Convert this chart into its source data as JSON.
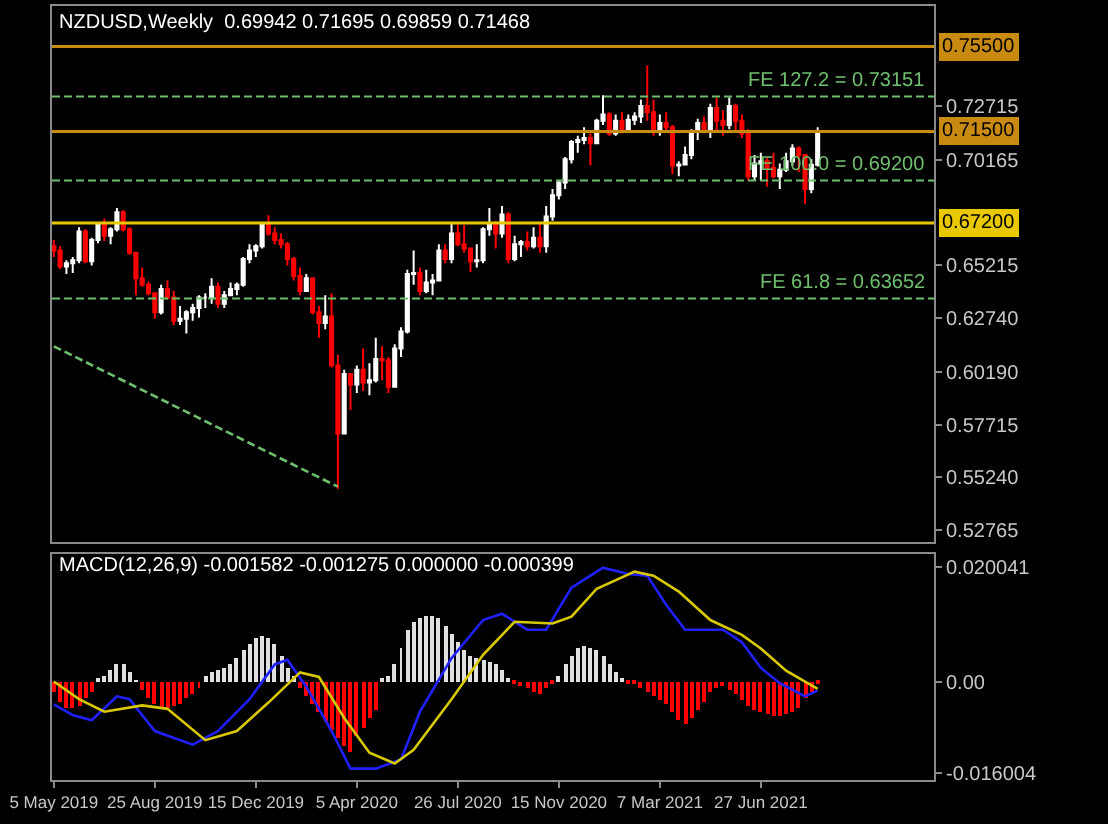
{
  "chart_data": [
    {
      "type": "candlestick",
      "title": "NZDUSD,Weekly  0.69942 0.71695 0.69859 0.71468",
      "tick_labels": "y",
      "xlim": [
        "2019-05-03",
        "2022-01-05"
      ],
      "ylim": [
        0.522,
        0.774
      ],
      "yticks": [
        {
          "value": 0.72715,
          "label": "0.72715"
        },
        {
          "value": 0.70165,
          "label": "0.70165"
        },
        {
          "value": 0.65215,
          "label": "0.65215"
        },
        {
          "value": 0.6274,
          "label": "0.62740"
        },
        {
          "value": 0.6019,
          "label": "0.60190"
        },
        {
          "value": 0.57715,
          "label": "0.57715"
        },
        {
          "value": 0.5524,
          "label": "0.55240"
        },
        {
          "value": 0.52765,
          "label": "0.52765"
        }
      ],
      "x": [
        "2019-05-05",
        "2019-05-12",
        "2019-05-19",
        "2019-05-26",
        "2019-06-02",
        "2019-06-09",
        "2019-06-16",
        "2019-06-23",
        "2019-06-30",
        "2019-07-07",
        "2019-07-14",
        "2019-07-21",
        "2019-07-28",
        "2019-08-04",
        "2019-08-11",
        "2019-08-18",
        "2019-08-25",
        "2019-09-01",
        "2019-09-08",
        "2019-09-15",
        "2019-09-22",
        "2019-09-29",
        "2019-10-06",
        "2019-10-13",
        "2019-10-20",
        "2019-10-27",
        "2019-11-03",
        "2019-11-10",
        "2019-11-17",
        "2019-11-24",
        "2019-12-01",
        "2019-12-08",
        "2019-12-15",
        "2019-12-22",
        "2019-12-29",
        "2020-01-05",
        "2020-01-12",
        "2020-01-19",
        "2020-01-26",
        "2020-02-02",
        "2020-02-09",
        "2020-02-16",
        "2020-02-23",
        "2020-03-01",
        "2020-03-08",
        "2020-03-15",
        "2020-03-22",
        "2020-03-29",
        "2020-04-05",
        "2020-04-12",
        "2020-04-19",
        "2020-04-26",
        "2020-05-03",
        "2020-05-10",
        "2020-05-17",
        "2020-05-24",
        "2020-05-31",
        "2020-06-07",
        "2020-06-14",
        "2020-06-21",
        "2020-06-28",
        "2020-07-05",
        "2020-07-12",
        "2020-07-19",
        "2020-07-26",
        "2020-08-02",
        "2020-08-09",
        "2020-08-16",
        "2020-08-23",
        "2020-08-30",
        "2020-09-06",
        "2020-09-13",
        "2020-09-20",
        "2020-09-27",
        "2020-10-04",
        "2020-10-11",
        "2020-10-18",
        "2020-10-25",
        "2020-11-01",
        "2020-11-08",
        "2020-11-15",
        "2020-11-22",
        "2020-11-29",
        "2020-12-06",
        "2020-12-13",
        "2020-12-20",
        "2020-12-27",
        "2021-01-03",
        "2021-01-10",
        "2021-01-17",
        "2021-01-24",
        "2021-01-31",
        "2021-02-07",
        "2021-02-14",
        "2021-02-21",
        "2021-02-28",
        "2021-03-07",
        "2021-03-14",
        "2021-03-21",
        "2021-03-28",
        "2021-04-04",
        "2021-04-11",
        "2021-04-18",
        "2021-04-25",
        "2021-05-02",
        "2021-05-09",
        "2021-05-16",
        "2021-05-23",
        "2021-05-30",
        "2021-06-06",
        "2021-06-13",
        "2021-06-20",
        "2021-06-27",
        "2021-07-04",
        "2021-07-11",
        "2021-07-18",
        "2021-07-25",
        "2021-08-01",
        "2021-08-08",
        "2021-08-15",
        "2021-08-22",
        "2021-08-29"
      ],
      "ohlc": [
        [
          0.661,
          0.664,
          0.656,
          0.659
        ],
        [
          0.659,
          0.661,
          0.6505,
          0.6515
        ],
        [
          0.6515,
          0.6545,
          0.648,
          0.653
        ],
        [
          0.653,
          0.656,
          0.6485,
          0.6545
        ],
        [
          0.6545,
          0.67,
          0.653,
          0.668
        ],
        [
          0.668,
          0.669,
          0.653,
          0.654
        ],
        [
          0.654,
          0.665,
          0.652,
          0.664
        ],
        [
          0.664,
          0.6725,
          0.6625,
          0.6715
        ],
        [
          0.6715,
          0.674,
          0.6635,
          0.666
        ],
        [
          0.666,
          0.67,
          0.662,
          0.669
        ],
        [
          0.669,
          0.679,
          0.668,
          0.677
        ],
        [
          0.677,
          0.678,
          0.668,
          0.669
        ],
        [
          0.669,
          0.67,
          0.657,
          0.658
        ],
        [
          0.658,
          0.6585,
          0.638,
          0.646
        ],
        [
          0.646,
          0.651,
          0.642,
          0.643
        ],
        [
          0.643,
          0.6445,
          0.638,
          0.639
        ],
        [
          0.639,
          0.639,
          0.627,
          0.63
        ],
        [
          0.63,
          0.643,
          0.629,
          0.641
        ],
        [
          0.641,
          0.645,
          0.636,
          0.637
        ],
        [
          0.637,
          0.64,
          0.624,
          0.626
        ],
        [
          0.626,
          0.633,
          0.624,
          0.627
        ],
        [
          0.627,
          0.631,
          0.62,
          0.63
        ],
        [
          0.63,
          0.634,
          0.626,
          0.632
        ],
        [
          0.632,
          0.638,
          0.6275,
          0.637
        ],
        [
          0.637,
          0.639,
          0.632,
          0.637
        ],
        [
          0.637,
          0.646,
          0.634,
          0.642
        ],
        [
          0.642,
          0.644,
          0.632,
          0.634
        ],
        [
          0.634,
          0.64,
          0.632,
          0.638
        ],
        [
          0.638,
          0.644,
          0.638,
          0.641
        ],
        [
          0.641,
          0.644,
          0.638,
          0.643
        ],
        [
          0.643,
          0.656,
          0.642,
          0.655
        ],
        [
          0.655,
          0.662,
          0.653,
          0.659
        ],
        [
          0.659,
          0.662,
          0.656,
          0.661
        ],
        [
          0.661,
          0.672,
          0.66,
          0.671
        ],
        [
          0.671,
          0.6756,
          0.666,
          0.667
        ],
        [
          0.667,
          0.67,
          0.662,
          0.664
        ],
        [
          0.664,
          0.667,
          0.66,
          0.662
        ],
        [
          0.662,
          0.663,
          0.652,
          0.655
        ],
        [
          0.655,
          0.656,
          0.645,
          0.647
        ],
        [
          0.647,
          0.651,
          0.638,
          0.64
        ],
        [
          0.64,
          0.648,
          0.64,
          0.646
        ],
        [
          0.646,
          0.646,
          0.629,
          0.63
        ],
        [
          0.63,
          0.633,
          0.618,
          0.625
        ],
        [
          0.625,
          0.638,
          0.622,
          0.628
        ],
        [
          0.628,
          0.639,
          0.604,
          0.605
        ],
        [
          0.605,
          0.61,
          0.547,
          0.573
        ],
        [
          0.573,
          0.603,
          0.573,
          0.601
        ],
        [
          0.601,
          0.601,
          0.584,
          0.596
        ],
        [
          0.596,
          0.605,
          0.592,
          0.603
        ],
        [
          0.603,
          0.613,
          0.593,
          0.597
        ],
        [
          0.597,
          0.606,
          0.591,
          0.598
        ],
        [
          0.598,
          0.618,
          0.597,
          0.608
        ],
        [
          0.608,
          0.614,
          0.598,
          0.6075
        ],
        [
          0.6075,
          0.609,
          0.592,
          0.595
        ],
        [
          0.595,
          0.615,
          0.595,
          0.613
        ],
        [
          0.613,
          0.623,
          0.609,
          0.621
        ],
        [
          0.621,
          0.65,
          0.62,
          0.648
        ],
        [
          0.648,
          0.659,
          0.643,
          0.6485
        ],
        [
          0.6485,
          0.651,
          0.638,
          0.64
        ],
        [
          0.64,
          0.65,
          0.639,
          0.644
        ],
        [
          0.644,
          0.648,
          0.638,
          0.645
        ],
        [
          0.645,
          0.662,
          0.645,
          0.659
        ],
        [
          0.659,
          0.662,
          0.653,
          0.655
        ],
        [
          0.655,
          0.672,
          0.653,
          0.667
        ],
        [
          0.667,
          0.672,
          0.661,
          0.662
        ],
        [
          0.662,
          0.671,
          0.658,
          0.66
        ],
        [
          0.66,
          0.66,
          0.649,
          0.654
        ],
        [
          0.654,
          0.662,
          0.651,
          0.6545
        ],
        [
          0.6545,
          0.67,
          0.653,
          0.669
        ],
        [
          0.669,
          0.679,
          0.666,
          0.671
        ],
        [
          0.671,
          0.673,
          0.66,
          0.667
        ],
        [
          0.667,
          0.68,
          0.665,
          0.676
        ],
        [
          0.676,
          0.677,
          0.653,
          0.655
        ],
        [
          0.655,
          0.666,
          0.654,
          0.662
        ],
        [
          0.662,
          0.664,
          0.656,
          0.663
        ],
        [
          0.663,
          0.668,
          0.659,
          0.661
        ],
        [
          0.661,
          0.67,
          0.66,
          0.665
        ],
        [
          0.665,
          0.672,
          0.658,
          0.661
        ],
        [
          0.661,
          0.68,
          0.658,
          0.675
        ],
        [
          0.675,
          0.688,
          0.673,
          0.685
        ],
        [
          0.685,
          0.692,
          0.683,
          0.691
        ],
        [
          0.691,
          0.703,
          0.688,
          0.702
        ],
        [
          0.702,
          0.711,
          0.7,
          0.71
        ],
        [
          0.71,
          0.713,
          0.705,
          0.711
        ],
        [
          0.711,
          0.717,
          0.709,
          0.712
        ],
        [
          0.712,
          0.714,
          0.699,
          0.7095
        ],
        [
          0.7095,
          0.721,
          0.709,
          0.72
        ],
        [
          0.72,
          0.732,
          0.718,
          0.723
        ],
        [
          0.723,
          0.724,
          0.713,
          0.714
        ],
        [
          0.714,
          0.723,
          0.713,
          0.72
        ],
        [
          0.72,
          0.724,
          0.714,
          0.715
        ],
        [
          0.715,
          0.723,
          0.715,
          0.7205
        ],
        [
          0.7205,
          0.724,
          0.718,
          0.722
        ],
        [
          0.722,
          0.73,
          0.719,
          0.727
        ],
        [
          0.727,
          0.746,
          0.72,
          0.724
        ],
        [
          0.724,
          0.73,
          0.713,
          0.715
        ],
        [
          0.715,
          0.723,
          0.713,
          0.719
        ],
        [
          0.719,
          0.724,
          0.715,
          0.717
        ],
        [
          0.717,
          0.718,
          0.695,
          0.699
        ],
        [
          0.699,
          0.701,
          0.694,
          0.6995
        ],
        [
          0.6995,
          0.708,
          0.699,
          0.704
        ],
        [
          0.704,
          0.716,
          0.702,
          0.715
        ],
        [
          0.715,
          0.721,
          0.711,
          0.719
        ],
        [
          0.719,
          0.722,
          0.715,
          0.716
        ],
        [
          0.716,
          0.728,
          0.712,
          0.726
        ],
        [
          0.726,
          0.731,
          0.715,
          0.72
        ],
        [
          0.72,
          0.725,
          0.713,
          0.718
        ],
        [
          0.718,
          0.731,
          0.716,
          0.727
        ],
        [
          0.727,
          0.728,
          0.715,
          0.72
        ],
        [
          0.72,
          0.723,
          0.712,
          0.714
        ],
        [
          0.714,
          0.716,
          0.692,
          0.694
        ],
        [
          0.694,
          0.704,
          0.692,
          0.7
        ],
        [
          0.7,
          0.705,
          0.692,
          0.701
        ],
        [
          0.701,
          0.703,
          0.689,
          0.698
        ],
        [
          0.698,
          0.705,
          0.693,
          0.694
        ],
        [
          0.694,
          0.7,
          0.688,
          0.697
        ],
        [
          0.697,
          0.705,
          0.696,
          0.701
        ],
        [
          0.701,
          0.709,
          0.699,
          0.707
        ],
        [
          0.707,
          0.708,
          0.696,
          0.704
        ],
        [
          0.704,
          0.704,
          0.681,
          0.688
        ],
        [
          0.688,
          0.702,
          0.686,
          0.6994
        ],
        [
          0.69942,
          0.71695,
          0.69859,
          0.71468
        ]
      ],
      "series": [
        {
          "type": "line",
          "x": [
            "2019-05-05",
            "2020-03-15"
          ],
          "values": [
            0.614,
            0.548
          ],
          "color": "#6fbf6f",
          "line_style": "dashed"
        }
      ],
      "ref_lines": [
        {
          "axis": "y",
          "value": 0.755,
          "label": "0.75500",
          "color": "#c88a10",
          "line_style": "solid"
        },
        {
          "axis": "y",
          "value": 0.715,
          "label": "0.71500",
          "color": "#c88a10",
          "line_style": "solid"
        },
        {
          "axis": "y",
          "value": 0.672,
          "label": "0.67200",
          "color": "#e8c800",
          "line_style": "solid"
        },
        {
          "axis": "y",
          "value": 0.73151,
          "label": "FE 127.2 = 0.73151",
          "color": "#6fbf6f",
          "line_style": "dashed"
        },
        {
          "axis": "y",
          "value": 0.692,
          "label": "FE 100.0 = 0.69200",
          "color": "#6fbf6f",
          "line_style": "dashed"
        },
        {
          "axis": "y",
          "value": 0.63652,
          "label": "FE 61.8 = 0.63652",
          "color": "#6fbf6f",
          "line_style": "dashed"
        }
      ]
    },
    {
      "type": "bar",
      "title": "MACD(12,26,9) -0.001582 -0.001275 0.000000 -0.000399",
      "xlim": [
        "2019-05-03",
        "2022-01-05"
      ],
      "ylim": [
        -0.0173,
        0.0224
      ],
      "yticks": [
        0.020041,
        {
          "value": 0,
          "label": "0.00"
        },
        -0.016004
      ],
      "xticks": [
        {
          "value": "2019-05-05",
          "label": "5 May 2019"
        },
        {
          "value": "2019-08-25",
          "label": "25 Aug 2019"
        },
        {
          "value": "2019-12-15",
          "label": "15 Dec 2019"
        },
        {
          "value": "2020-04-05",
          "label": "5 Apr 2020"
        },
        {
          "value": "2020-07-26",
          "label": "26 Jul 2020"
        },
        {
          "value": "2020-11-15",
          "label": "15 Nov 2020"
        },
        {
          "value": "2021-03-07",
          "label": "7 Mar 2021"
        },
        {
          "value": "2021-06-27",
          "label": "27 Jun 2021"
        }
      ],
      "x": [
        "2019-05-05",
        "2019-05-12",
        "2019-05-19",
        "2019-05-26",
        "2019-06-02",
        "2019-06-09",
        "2019-06-16",
        "2019-06-23",
        "2019-06-30",
        "2019-07-07",
        "2019-07-14",
        "2019-07-21",
        "2019-07-28",
        "2019-08-04",
        "2019-08-11",
        "2019-08-18",
        "2019-08-25",
        "2019-09-01",
        "2019-09-08",
        "2019-09-15",
        "2019-09-22",
        "2019-09-29",
        "2019-10-06",
        "2019-10-13",
        "2019-10-20",
        "2019-10-27",
        "2019-11-03",
        "2019-11-10",
        "2019-11-17",
        "2019-11-24",
        "2019-12-01",
        "2019-12-08",
        "2019-12-15",
        "2019-12-22",
        "2019-12-29",
        "2020-01-05",
        "2020-01-12",
        "2020-01-19",
        "2020-01-26",
        "2020-02-02",
        "2020-02-09",
        "2020-02-16",
        "2020-02-23",
        "2020-03-01",
        "2020-03-08",
        "2020-03-15",
        "2020-03-22",
        "2020-03-29",
        "2020-04-05",
        "2020-04-12",
        "2020-04-19",
        "2020-04-26",
        "2020-05-03",
        "2020-05-10",
        "2020-05-17",
        "2020-05-24",
        "2020-05-31",
        "2020-06-07",
        "2020-06-14",
        "2020-06-21",
        "2020-06-28",
        "2020-07-05",
        "2020-07-12",
        "2020-07-19",
        "2020-07-26",
        "2020-08-02",
        "2020-08-09",
        "2020-08-16",
        "2020-08-23",
        "2020-08-30",
        "2020-09-06",
        "2020-09-13",
        "2020-09-20",
        "2020-09-27",
        "2020-10-04",
        "2020-10-11",
        "2020-10-18",
        "2020-10-25",
        "2020-11-01",
        "2020-11-08",
        "2020-11-15",
        "2020-11-22",
        "2020-11-29",
        "2020-12-06",
        "2020-12-13",
        "2020-12-20",
        "2020-12-27",
        "2021-01-03",
        "2021-01-10",
        "2021-01-17",
        "2021-01-24",
        "2021-01-31",
        "2021-02-07",
        "2021-02-14",
        "2021-02-21",
        "2021-02-28",
        "2021-03-07",
        "2021-03-14",
        "2021-03-21",
        "2021-03-28",
        "2021-04-04",
        "2021-04-11",
        "2021-04-18",
        "2021-04-25",
        "2021-05-02",
        "2021-05-09",
        "2021-05-16",
        "2021-05-23",
        "2021-05-30",
        "2021-06-06",
        "2021-06-13",
        "2021-06-20",
        "2021-06-27",
        "2021-07-04",
        "2021-07-11",
        "2021-07-18",
        "2021-07-25",
        "2021-08-01",
        "2021-08-08",
        "2021-08-15",
        "2021-08-22",
        "2021-08-29"
      ],
      "series": [
        {
          "values": [
            -0.002,
            -0.0035,
            -0.0045,
            -0.0048,
            -0.0042,
            -0.003,
            -0.0018,
            0.0003,
            0.001,
            0.0022,
            0.0032,
            0.003,
            0.0015,
            0.0002,
            -0.0015,
            -0.003,
            -0.004,
            -0.0045,
            -0.0045,
            -0.0042,
            -0.0038,
            -0.003,
            -0.0022,
            -0.001,
            0.0008,
            0.0015,
            0.002,
            0.0025,
            0.003,
            0.004,
            0.0055,
            0.0065,
            0.0075,
            0.008,
            0.0078,
            0.0065,
            0.0045,
            0.0025,
            0.0008,
            -0.001,
            -0.0025,
            -0.004,
            -0.0055,
            -0.007,
            -0.0085,
            -0.01,
            -0.0115,
            -0.0123,
            -0.0095,
            -0.008,
            -0.0065,
            -0.005,
            0.0003,
            0.001,
            0.003,
            0.006,
            0.009,
            0.0105,
            0.0112,
            0.0115,
            0.0115,
            0.011,
            0.0098,
            0.0085,
            0.007,
            0.0055,
            0.0045,
            0.004,
            0.0038,
            0.0035,
            0.003,
            0.002,
            0.0005,
            -0.0005,
            -0.0008,
            -0.0012,
            -0.0018,
            -0.0022,
            -0.0012,
            -0.0004,
            0.001,
            0.003,
            0.0045,
            0.006,
            0.0063,
            0.006,
            0.0055,
            0.0045,
            0.0032,
            0.0018,
            0.0006,
            -0.0003,
            -0.0005,
            -0.001,
            -0.0018,
            -0.0025,
            -0.0032,
            -0.004,
            -0.0055,
            -0.0068,
            -0.0075,
            -0.0065,
            -0.005,
            -0.0035,
            -0.002,
            -0.001,
            -0.0008,
            -0.0015,
            -0.0022,
            -0.0032,
            -0.0042,
            -0.005,
            -0.0055,
            -0.0058,
            -0.006,
            -0.006,
            -0.0058,
            -0.0052,
            -0.0045,
            -0.003,
            -0.0018,
            -0.0004
          ],
          "colors": [
            "#ff0000",
            "#ff0000",
            "#ff0000",
            "#ff0000",
            "#ff0000",
            "#ff0000",
            "#ff0000",
            "#e0e0e0",
            "#e0e0e0",
            "#e0e0e0",
            "#e0e0e0",
            "#e0e0e0",
            "#e0e0e0",
            "#e0e0e0",
            "#ff0000",
            "#ff0000",
            "#ff0000",
            "#ff0000",
            "#ff0000",
            "#ff0000",
            "#ff0000",
            "#ff0000",
            "#ff0000",
            "#ff0000",
            "#e0e0e0",
            "#e0e0e0",
            "#e0e0e0",
            "#e0e0e0",
            "#e0e0e0",
            "#e0e0e0",
            "#e0e0e0",
            "#e0e0e0",
            "#e0e0e0",
            "#e0e0e0",
            "#e0e0e0",
            "#e0e0e0",
            "#e0e0e0",
            "#e0e0e0",
            "#e0e0e0",
            "#ff0000",
            "#ff0000",
            "#ff0000",
            "#ff0000",
            "#ff0000",
            "#ff0000",
            "#ff0000",
            "#ff0000",
            "#ff0000",
            "#ff0000",
            "#ff0000",
            "#ff0000",
            "#ff0000",
            "#e0e0e0",
            "#e0e0e0",
            "#e0e0e0",
            "#e0e0e0",
            "#e0e0e0",
            "#e0e0e0",
            "#e0e0e0",
            "#e0e0e0",
            "#e0e0e0",
            "#e0e0e0",
            "#e0e0e0",
            "#e0e0e0",
            "#e0e0e0",
            "#e0e0e0",
            "#e0e0e0",
            "#e0e0e0",
            "#e0e0e0",
            "#e0e0e0",
            "#e0e0e0",
            "#e0e0e0",
            "#e0e0e0",
            "#ff0000",
            "#ff0000",
            "#ff0000",
            "#ff0000",
            "#ff0000",
            "#ff0000",
            "#ff0000",
            "#e0e0e0",
            "#e0e0e0",
            "#e0e0e0",
            "#e0e0e0",
            "#e0e0e0",
            "#e0e0e0",
            "#e0e0e0",
            "#e0e0e0",
            "#e0e0e0",
            "#e0e0e0",
            "#e0e0e0",
            "#ff0000",
            "#ff0000",
            "#ff0000",
            "#ff0000",
            "#ff0000",
            "#ff0000",
            "#ff0000",
            "#ff0000",
            "#ff0000",
            "#ff0000",
            "#ff0000",
            "#ff0000",
            "#ff0000",
            "#ff0000",
            "#ff0000",
            "#ff0000",
            "#ff0000",
            "#ff0000",
            "#ff0000",
            "#ff0000",
            "#ff0000",
            "#ff0000",
            "#ff0000",
            "#ff0000",
            "#ff0000",
            "#ff0000",
            "#ff0000",
            "#ff0000",
            "#ff0000",
            "#ff0000",
            "#ff0000"
          ]
        },
        {
          "type": "line",
          "color": "#2020ff",
          "x": [
            "2019-05-05",
            "2019-05-26",
            "2019-06-16",
            "2019-07-14",
            "2019-07-28",
            "2019-08-25",
            "2019-10-06",
            "2019-11-03",
            "2019-12-08",
            "2020-01-05",
            "2020-01-19",
            "2020-02-09",
            "2020-03-08",
            "2020-03-29",
            "2020-04-26",
            "2020-05-24",
            "2020-06-14",
            "2020-07-19",
            "2020-08-23",
            "2020-09-13",
            "2020-10-11",
            "2020-11-01",
            "2020-11-29",
            "2021-01-03",
            "2021-01-31",
            "2021-02-21",
            "2021-03-14",
            "2021-04-04",
            "2021-04-25",
            "2021-05-16",
            "2021-06-06",
            "2021-06-27",
            "2021-07-18",
            "2021-08-15",
            "2021-08-29"
          ],
          "values": [
            -0.004,
            -0.0059,
            -0.0068,
            -0.0026,
            -0.0031,
            -0.0087,
            -0.0111,
            -0.0087,
            -0.0031,
            0.003,
            0.0038,
            -0.0009,
            -0.0087,
            -0.0153,
            -0.0153,
            -0.0137,
            -0.0053,
            0.0041,
            0.0108,
            0.0119,
            0.0091,
            0.0091,
            0.0165,
            0.02,
            0.0189,
            0.0186,
            0.0135,
            0.0091,
            0.0091,
            0.0091,
            0.0069,
            0.0024,
            -0.0003,
            -0.0026,
            -0.0016
          ]
        },
        {
          "type": "line",
          "color": "#d8c800",
          "x": [
            "2019-05-05",
            "2019-06-02",
            "2019-06-30",
            "2019-08-11",
            "2019-09-08",
            "2019-10-20",
            "2019-11-24",
            "2019-12-29",
            "2020-02-02",
            "2020-02-23",
            "2020-03-22",
            "2020-04-19",
            "2020-05-17",
            "2020-06-07",
            "2020-07-19",
            "2020-08-23",
            "2020-09-27",
            "2020-11-08",
            "2020-11-29",
            "2020-12-27",
            "2021-02-07",
            "2021-02-28",
            "2021-03-28",
            "2021-05-02",
            "2021-06-06",
            "2021-06-27",
            "2021-07-25",
            "2021-08-29"
          ],
          "values": [
            0,
            -0.0031,
            -0.0053,
            -0.0042,
            -0.0048,
            -0.0103,
            -0.0087,
            -0.0037,
            0.0016,
            0.0008,
            -0.0064,
            -0.0125,
            -0.0144,
            -0.012,
            -0.0031,
            0.0047,
            0.0105,
            0.0102,
            0.0114,
            0.0163,
            0.0193,
            0.0186,
            0.0158,
            0.0108,
            0.0082,
            0.0058,
            0.0019,
            -0.0013
          ]
        }
      ]
    }
  ]
}
